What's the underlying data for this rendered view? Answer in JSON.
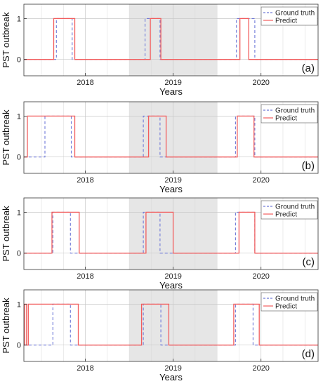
{
  "chart_data": [
    {
      "type": "line",
      "panel_label": "(a)",
      "xlabel": "Years",
      "ylabel": "PST outbreak",
      "x_tick_labels": [
        "2018",
        "2019",
        "2020"
      ],
      "y_tick_labels": [
        "0",
        "1"
      ],
      "ylim": [
        -0.4,
        1.35
      ],
      "xlim": [
        2017.3,
        2020.65
      ],
      "shaded_region": [
        2018.5,
        2019.5
      ],
      "grid": true,
      "legend_position": "top-right",
      "series": [
        {
          "name": "Ground truth",
          "color": "#6f79d8",
          "dash": "dashed",
          "x": [
            2017.3,
            2017.67,
            2017.67,
            2017.85,
            2017.85,
            2018.68,
            2018.68,
            2018.85,
            2018.85,
            2019.72,
            2019.72,
            2019.93,
            2019.93,
            2020.65
          ],
          "y": [
            0,
            0,
            1,
            1,
            0,
            0,
            1,
            1,
            0,
            0,
            1,
            1,
            0,
            0
          ]
        },
        {
          "name": "Predict",
          "color": "#f25d5d",
          "dash": "solid",
          "x": [
            2017.3,
            2017.64,
            2017.64,
            2017.88,
            2017.88,
            2018.74,
            2018.74,
            2018.86,
            2018.86,
            2019.76,
            2019.76,
            2019.86,
            2019.86,
            2020.65
          ],
          "y": [
            0,
            0,
            1,
            1,
            0,
            0,
            1,
            1,
            0,
            0,
            1,
            1,
            0,
            0
          ]
        }
      ]
    },
    {
      "type": "line",
      "panel_label": "(b)",
      "xlabel": "Years",
      "ylabel": "PST outbreak",
      "x_tick_labels": [
        "2018",
        "2019",
        "2020"
      ],
      "y_tick_labels": [
        "0",
        "1"
      ],
      "ylim": [
        -0.4,
        1.35
      ],
      "xlim": [
        2017.3,
        2020.65
      ],
      "shaded_region": [
        2018.5,
        2019.5
      ],
      "grid": true,
      "legend_position": "top-right",
      "series": [
        {
          "name": "Ground truth",
          "color": "#6f79d8",
          "dash": "dashed",
          "x": [
            2017.3,
            2017.54,
            2017.54,
            2017.84,
            2017.84,
            2018.66,
            2018.66,
            2018.85,
            2018.85,
            2019.71,
            2019.71,
            2019.93,
            2019.93,
            2020.65
          ],
          "y": [
            0,
            0,
            1,
            1,
            0,
            0,
            1,
            1,
            0,
            0,
            1,
            1,
            0,
            0
          ]
        },
        {
          "name": "Predict",
          "color": "#f25d5d",
          "dash": "solid",
          "x": [
            2017.3,
            2017.34,
            2017.34,
            2017.88,
            2017.88,
            2018.72,
            2018.72,
            2018.92,
            2018.92,
            2019.73,
            2019.73,
            2019.92,
            2019.92,
            2020.65
          ],
          "y": [
            0,
            0,
            1,
            1,
            0,
            0,
            1,
            1,
            0,
            0,
            1,
            1,
            0,
            0
          ]
        }
      ]
    },
    {
      "type": "line",
      "panel_label": "(c)",
      "xlabel": "Years",
      "ylabel": "PST outbreak",
      "x_tick_labels": [
        "2018",
        "2019",
        "2020"
      ],
      "y_tick_labels": [
        "0",
        "1"
      ],
      "ylim": [
        -0.4,
        1.35
      ],
      "xlim": [
        2017.3,
        2020.65
      ],
      "shaded_region": [
        2018.5,
        2019.5
      ],
      "grid": true,
      "legend_position": "top-right",
      "series": [
        {
          "name": "Ground truth",
          "color": "#6f79d8",
          "dash": "dashed",
          "x": [
            2017.3,
            2017.63,
            2017.63,
            2017.83,
            2017.83,
            2018.66,
            2018.66,
            2018.85,
            2018.85,
            2019.71,
            2019.71,
            2019.93,
            2019.93,
            2020.65
          ],
          "y": [
            0,
            0,
            1,
            1,
            0,
            0,
            1,
            1,
            0,
            0,
            1,
            1,
            0,
            0
          ]
        },
        {
          "name": "Predict",
          "color": "#f25d5d",
          "dash": "solid",
          "x": [
            2017.3,
            2017.62,
            2017.62,
            2017.93,
            2017.93,
            2018.69,
            2018.69,
            2019.0,
            2019.0,
            2019.75,
            2019.75,
            2019.93,
            2019.93,
            2020.65
          ],
          "y": [
            0,
            0,
            1,
            1,
            0,
            0,
            1,
            1,
            0,
            0,
            1,
            1,
            0,
            0
          ]
        }
      ]
    },
    {
      "type": "line",
      "panel_label": "(d)",
      "xlabel": "Years",
      "ylabel": "PST outbreak",
      "x_tick_labels": [
        "2018",
        "2019",
        "2020"
      ],
      "y_tick_labels": [
        "0",
        "1"
      ],
      "ylim": [
        -0.4,
        1.35
      ],
      "xlim": [
        2017.3,
        2020.65
      ],
      "shaded_region": [
        2018.5,
        2019.5
      ],
      "grid": true,
      "legend_position": "top-right",
      "series": [
        {
          "name": "Ground truth",
          "color": "#6f79d8",
          "dash": "dashed",
          "x": [
            2017.3,
            2017.63,
            2017.63,
            2017.83,
            2017.83,
            2018.66,
            2018.66,
            2018.86,
            2018.86,
            2019.71,
            2019.71,
            2019.91,
            2019.91,
            2020.65
          ],
          "y": [
            0,
            0,
            1,
            1,
            0,
            0,
            1,
            1,
            0,
            0,
            1,
            1,
            0,
            0
          ]
        },
        {
          "name": "Predict",
          "color": "#f25d5d",
          "dash": "solid",
          "x": [
            2017.3,
            2017.31,
            2017.31,
            2017.33,
            2017.33,
            2017.35,
            2017.35,
            2017.92,
            2017.92,
            2018.64,
            2018.64,
            2018.95,
            2018.95,
            2019.69,
            2019.69,
            2019.98,
            2019.98,
            2020.65
          ],
          "y": [
            0,
            0,
            1,
            1,
            0,
            0,
            1,
            1,
            0,
            0,
            1,
            1,
            0,
            0,
            1,
            1,
            0,
            0
          ]
        }
      ]
    }
  ]
}
